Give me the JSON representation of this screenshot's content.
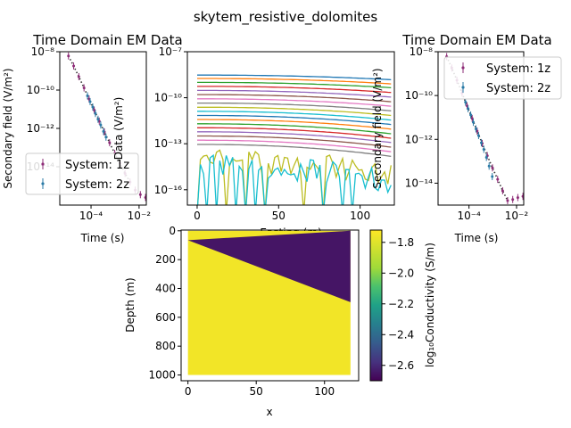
{
  "suptitle": "skytem_resistive_dolomites",
  "chart_data": [
    {
      "panel": "sounding-left",
      "type": "scatter",
      "title": "Time Domain EM Data",
      "xlabel": "Time (s)",
      "ylabel": "Secondary field (V/m²)",
      "xscale": "log",
      "yscale": "log",
      "xlim": [
        5e-06,
        0.02
      ],
      "ylim": [
        1e-16,
        1e-08
      ],
      "xticks": [
        {
          "v": 0.0001,
          "label": "10⁻⁴"
        },
        {
          "v": 0.01,
          "label": "10⁻²"
        }
      ],
      "yticks": [
        {
          "v": 1e-08,
          "label": "10⁻⁸"
        },
        {
          "v": 1e-10,
          "label": "10⁻¹⁰"
        },
        {
          "v": 1e-12,
          "label": "10⁻¹²"
        },
        {
          "v": 1e-14,
          "label": "10⁻¹⁴"
        }
      ],
      "legend": {
        "placement": "lower-left",
        "entries": [
          "System: 1z",
          "System: 2z"
        ]
      },
      "series": [
        {
          "name": "System: 1z",
          "color": "#8e2c77",
          "x": [
            1.15e-05,
            1.89e-05,
            3.1e-05,
            5.1e-05,
            8.3e-05,
            0.000136,
            0.00022,
            0.00036,
            0.00059,
            0.00097,
            0.0016,
            0.0026,
            0.0042,
            0.0069,
            0.0113,
            0.0185
          ],
          "y": [
            6e-09,
            1.8e-09,
            5e-10,
            1.3e-10,
            3.4e-11,
            9e-12,
            2.4e-12,
            6.5e-13,
            1.8e-13,
            5e-14,
            1.5e-14,
            4.5e-15,
            1.6e-15,
            6e-16,
            3.5e-16,
            2.5e-16
          ]
        },
        {
          "name": "System: 2z",
          "color": "#2a7aa6",
          "x": [
            7.1e-05,
            9.16e-05,
            0.000118,
            0.000152,
            0.000196,
            0.000253,
            0.00033,
            0.00042
          ],
          "y": [
            5e-11,
            2.5e-11,
            1.3e-11,
            6e-12,
            3e-12,
            1.5e-12,
            7e-13,
            3.5e-13
          ]
        }
      ],
      "predicted": {
        "name": "predicted",
        "color": "#333333",
        "x": [
          1.15e-05,
          1.89e-05,
          3.1e-05,
          5.1e-05,
          8.3e-05,
          0.000136,
          0.00022,
          0.00036,
          0.00059,
          0.00097,
          0.0016,
          0.0026,
          0.0042
        ],
        "y": [
          6e-09,
          1.8e-09,
          5e-10,
          1.3e-10,
          3.4e-11,
          9e-12,
          2.4e-12,
          6.5e-13,
          1.8e-13,
          5e-14,
          1.5e-14,
          4.5e-15,
          1.6e-15
        ]
      }
    },
    {
      "panel": "data-profiles",
      "type": "line",
      "title": "",
      "xlabel": "Easting (m)",
      "ylabel": "Data (V/m²)",
      "yscale": "log",
      "xlim": [
        -6,
        121
      ],
      "ylim": [
        1e-17,
        1e-07
      ],
      "xticks": [
        {
          "v": 0,
          "label": "0"
        },
        {
          "v": 50,
          "label": "50"
        },
        {
          "v": 100,
          "label": "100"
        }
      ],
      "yticks": [
        {
          "v": 1e-07,
          "label": "10⁻⁷"
        },
        {
          "v": 1e-10,
          "label": "10⁻¹⁰"
        },
        {
          "v": 1e-13,
          "label": "10⁻¹³"
        },
        {
          "v": 1e-16,
          "label": "10⁻¹⁶"
        }
      ],
      "x_range": [
        0,
        119
      ],
      "series": [
        {
          "color": "#1f77b4",
          "y0": 3e-09,
          "y1": 1.5e-09
        },
        {
          "color": "#ff7f0e",
          "y0": 1.8e-09,
          "y1": 8e-10
        },
        {
          "color": "#2ca02c",
          "y0": 1e-09,
          "y1": 4.5e-10
        },
        {
          "color": "#d62728",
          "y0": 5.5e-10,
          "y1": 2.2e-10
        },
        {
          "color": "#9467bd",
          "y0": 3e-10,
          "y1": 1.1e-10
        },
        {
          "color": "#8c564b",
          "y0": 1.6e-10,
          "y1": 5.5e-11
        },
        {
          "color": "#e377c2",
          "y0": 8.5e-11,
          "y1": 2.8e-11
        },
        {
          "color": "#7f7f7f",
          "y0": 4.5e-11,
          "y1": 1.4e-11
        },
        {
          "color": "#bcbd22",
          "y0": 2.4e-11,
          "y1": 7e-12
        },
        {
          "color": "#17becf",
          "y0": 1.3e-11,
          "y1": 3.5e-12
        },
        {
          "color": "#1f77b4",
          "y0": 7e-12,
          "y1": 1.8e-12
        },
        {
          "color": "#ff7f0e",
          "y0": 3.8e-12,
          "y1": 9e-13
        },
        {
          "color": "#2ca02c",
          "y0": 2e-12,
          "y1": 4.5e-13
        },
        {
          "color": "#d62728",
          "y0": 1.1e-12,
          "y1": 2.3e-13
        },
        {
          "color": "#9467bd",
          "y0": 6e-13,
          "y1": 1.2e-13
        },
        {
          "color": "#8c564b",
          "y0": 3.2e-13,
          "y1": 6e-14
        },
        {
          "color": "#e377c2",
          "y0": 1.7e-13,
          "y1": 3e-14
        },
        {
          "color": "#7f7f7f",
          "y0": 9e-14,
          "y1": 1.5e-14
        },
        {
          "color": "#bcbd22",
          "y0": 5e-14,
          "y1": 5e-15,
          "noisy": true
        },
        {
          "color": "#17becf",
          "y0": 2.5e-14,
          "y1": 2e-15,
          "noisy": true
        }
      ]
    },
    {
      "panel": "sounding-right",
      "type": "scatter",
      "title": "Time Domain EM Data",
      "xlabel": "Time (s)",
      "ylabel": "Secondary field (V/m²)",
      "xscale": "log",
      "yscale": "log",
      "xlim": [
        5e-06,
        0.02
      ],
      "ylim": [
        1e-15,
        1e-08
      ],
      "xticks": [
        {
          "v": 0.0001,
          "label": "10⁻⁴"
        },
        {
          "v": 0.01,
          "label": "10⁻²"
        }
      ],
      "yticks": [
        {
          "v": 1e-08,
          "label": "10⁻⁸"
        },
        {
          "v": 1e-10,
          "label": "10⁻¹⁰"
        },
        {
          "v": 1e-12,
          "label": "10⁻¹²"
        },
        {
          "v": 1e-14,
          "label": "10⁻¹⁴"
        }
      ],
      "legend": {
        "placement": "upper-right",
        "entries": [
          "System: 1z",
          "System: 2z"
        ]
      },
      "series": [
        {
          "name": "System: 1z",
          "color": "#8e2c77",
          "x": [
            1.15e-05,
            1.89e-05,
            3.1e-05,
            5.1e-05,
            8.3e-05,
            0.000136,
            0.00022,
            0.00036,
            0.00059,
            0.00097,
            0.0016,
            0.0026,
            0.0042,
            0.0069,
            0.0113,
            0.0185
          ],
          "y": [
            6e-09,
            1.8e-09,
            5e-10,
            1.3e-10,
            3.4e-11,
            9e-12,
            2.4e-12,
            6.5e-13,
            1.8e-13,
            5e-14,
            1.5e-14,
            4.5e-15,
            1.6e-15,
            1.8e-15,
            2.2e-15,
            2.5e-15
          ]
        },
        {
          "name": "System: 2z",
          "color": "#2a7aa6",
          "x": [
            7.1e-05,
            9.16e-05,
            0.000118,
            0.000152,
            0.000196,
            0.000253,
            0.00033,
            0.00042,
            0.00054,
            0.0007,
            0.00095
          ],
          "y": [
            5e-11,
            2.5e-11,
            1.3e-11,
            6e-12,
            3e-12,
            1.5e-12,
            7e-13,
            3.5e-13,
            1.5e-13,
            6e-14,
            2e-14
          ]
        }
      ],
      "predicted": {
        "name": "predicted",
        "color": "#333333",
        "x": [
          1.15e-05,
          1.89e-05,
          3.1e-05,
          5.1e-05,
          8.3e-05,
          0.000136,
          0.00022,
          0.00036,
          0.00059,
          0.00097,
          0.0016,
          0.0026,
          0.0042
        ],
        "y": [
          6e-09,
          1.8e-09,
          5e-10,
          1.3e-10,
          3.4e-11,
          9e-12,
          2.4e-12,
          6.5e-13,
          1.8e-13,
          5e-14,
          1.5e-14,
          4.5e-15,
          1.6e-15
        ]
      }
    },
    {
      "panel": "conductivity-section",
      "type": "heatmap",
      "title": "",
      "xlabel": "x",
      "ylabel": "Depth (m)",
      "xlim": [
        -5,
        125
      ],
      "ylim": [
        1040,
        -5
      ],
      "xticks": [
        {
          "v": 0,
          "label": "0"
        },
        {
          "v": 50,
          "label": "50"
        },
        {
          "v": 100,
          "label": "100"
        }
      ],
      "yticks": [
        {
          "v": 0,
          "label": "0"
        },
        {
          "v": 200,
          "label": "200"
        },
        {
          "v": 400,
          "label": "400"
        },
        {
          "v": 600,
          "label": "600"
        },
        {
          "v": 800,
          "label": "800"
        },
        {
          "v": 1000,
          "label": "1000"
        }
      ],
      "model": {
        "x_range": [
          0,
          119
        ],
        "depth_range": [
          0,
          1000
        ],
        "background_value": -1.75,
        "layer_value": -2.65,
        "layer_top": [
          [
            0,
            65
          ],
          [
            119,
            0
          ]
        ],
        "layer_bottom": [
          [
            0,
            65
          ],
          [
            119,
            495
          ]
        ]
      },
      "colorbar": {
        "label": "log₁₀Conductivity (S/m)",
        "range": [
          -2.7,
          -1.72
        ],
        "ticks": [
          {
            "v": -1.8,
            "label": "−1.8"
          },
          {
            "v": -2.0,
            "label": "−2.0"
          },
          {
            "v": -2.2,
            "label": "−2.2"
          },
          {
            "v": -2.4,
            "label": "−2.4"
          },
          {
            "v": -2.6,
            "label": "−2.6"
          }
        ],
        "colormap": "viridis"
      }
    }
  ]
}
